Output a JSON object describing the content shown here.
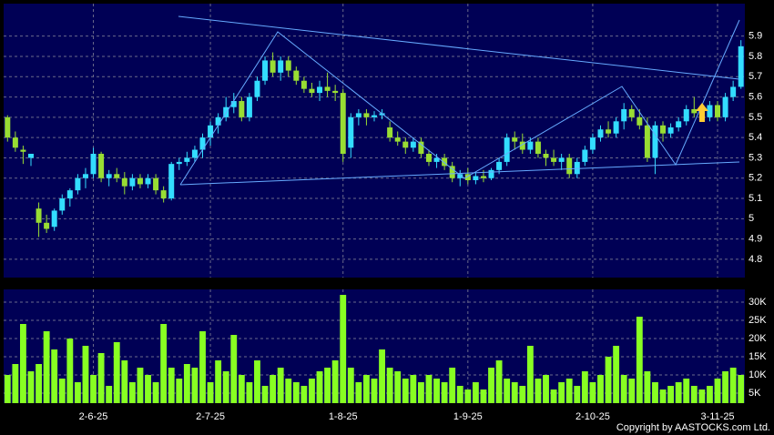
{
  "chart_data": [
    {
      "type": "candlestick",
      "categories": [
        null,
        null,
        null,
        null,
        null,
        null,
        null,
        null,
        null,
        null,
        null,
        "2-6-25",
        null,
        null,
        null,
        null,
        null,
        null,
        null,
        null,
        null,
        null,
        null,
        null,
        null,
        null,
        "2-7-25",
        null,
        null,
        null,
        null,
        null,
        null,
        null,
        null,
        null,
        null,
        null,
        null,
        null,
        null,
        null,
        null,
        "1-8-25",
        null,
        null,
        null,
        null,
        null,
        null,
        null,
        null,
        null,
        null,
        null,
        null,
        null,
        null,
        null,
        "1-9-25",
        null,
        null,
        null,
        null,
        null,
        null,
        null,
        null,
        null,
        null,
        null,
        null,
        null,
        null,
        null,
        "2-10-25",
        null,
        null,
        null,
        null,
        null,
        null,
        null,
        null,
        null,
        null,
        null,
        null,
        null,
        null,
        null,
        "3-11-25",
        null,
        null,
        null
      ],
      "open": [
        5.5,
        5.4,
        5.34,
        5.3,
        5.05,
        4.98,
        4.96,
        5.04,
        5.1,
        5.14,
        5.2,
        5.22,
        5.32,
        5.2,
        5.22,
        5.2,
        5.16,
        5.2,
        5.17,
        5.2,
        5.14,
        5.1,
        5.27,
        5.28,
        5.3,
        5.34,
        5.4,
        5.46,
        5.5,
        5.55,
        5.58,
        5.5,
        5.6,
        5.68,
        5.78,
        5.72,
        5.78,
        5.73,
        5.68,
        5.64,
        5.62,
        5.65,
        5.63,
        5.62,
        5.35,
        5.5,
        5.52,
        5.5,
        5.51,
        5.45,
        5.4,
        5.38,
        5.35,
        5.38,
        5.32,
        5.28,
        5.3,
        5.26,
        5.2,
        5.22,
        5.19,
        5.21,
        5.2,
        5.24,
        5.28,
        5.4,
        5.38,
        5.34,
        5.38,
        5.32,
        5.3,
        5.28,
        5.3,
        5.22,
        5.28,
        5.34,
        5.4,
        5.44,
        5.42,
        5.48,
        5.54,
        5.5,
        5.46,
        5.3,
        5.46,
        5.42,
        5.45,
        5.48,
        5.54,
        5.52,
        5.5,
        5.56,
        5.5,
        5.6,
        5.65
      ],
      "high": [
        5.51,
        5.43,
        5.36,
        5.32,
        5.08,
        5.02,
        5.05,
        5.12,
        5.15,
        5.22,
        5.25,
        5.35,
        5.33,
        5.24,
        5.25,
        5.23,
        5.22,
        5.22,
        5.22,
        5.22,
        5.16,
        5.28,
        5.3,
        5.33,
        5.36,
        5.42,
        5.48,
        5.52,
        5.6,
        5.62,
        5.6,
        5.62,
        5.7,
        5.8,
        5.82,
        5.8,
        5.8,
        5.75,
        5.7,
        5.67,
        5.68,
        5.72,
        5.66,
        5.64,
        5.52,
        5.54,
        5.54,
        5.53,
        5.54,
        5.48,
        5.43,
        5.4,
        5.4,
        5.4,
        5.34,
        5.32,
        5.32,
        5.28,
        5.24,
        5.25,
        5.23,
        5.24,
        5.25,
        5.3,
        5.42,
        5.43,
        5.42,
        5.4,
        5.4,
        5.34,
        5.34,
        5.32,
        5.32,
        5.3,
        5.36,
        5.42,
        5.46,
        5.48,
        5.5,
        5.57,
        5.56,
        5.54,
        5.5,
        5.48,
        5.48,
        5.47,
        5.5,
        5.56,
        5.6,
        5.56,
        5.58,
        5.58,
        5.62,
        5.68,
        5.88
      ],
      "low": [
        5.38,
        5.33,
        5.27,
        5.26,
        4.91,
        4.93,
        4.94,
        5.02,
        5.06,
        5.12,
        5.15,
        5.2,
        5.18,
        5.16,
        5.18,
        5.12,
        5.14,
        5.15,
        5.15,
        5.12,
        5.08,
        5.09,
        5.24,
        5.26,
        5.28,
        5.3,
        5.36,
        5.42,
        5.48,
        5.52,
        5.48,
        5.48,
        5.58,
        5.66,
        5.7,
        5.68,
        5.7,
        5.66,
        5.62,
        5.6,
        5.58,
        5.6,
        5.58,
        5.28,
        5.3,
        5.46,
        5.46,
        5.48,
        5.49,
        5.38,
        5.36,
        5.32,
        5.33,
        5.3,
        5.26,
        5.25,
        5.24,
        5.18,
        5.16,
        5.17,
        5.17,
        5.18,
        5.19,
        5.22,
        5.26,
        5.34,
        5.32,
        5.32,
        5.3,
        5.26,
        5.26,
        5.24,
        5.2,
        5.2,
        5.26,
        5.32,
        5.38,
        5.4,
        5.4,
        5.44,
        5.48,
        5.44,
        5.28,
        5.22,
        5.38,
        5.4,
        5.43,
        5.46,
        5.5,
        5.48,
        5.48,
        5.48,
        5.48,
        5.58,
        5.64
      ],
      "close": [
        5.4,
        5.35,
        5.33,
        5.32,
        4.98,
        4.95,
        5.04,
        5.1,
        5.14,
        5.2,
        5.22,
        5.32,
        5.2,
        5.22,
        5.2,
        5.16,
        5.2,
        5.17,
        5.2,
        5.14,
        5.1,
        5.27,
        5.28,
        5.3,
        5.34,
        5.4,
        5.46,
        5.5,
        5.55,
        5.58,
        5.5,
        5.6,
        5.68,
        5.78,
        5.72,
        5.78,
        5.73,
        5.68,
        5.64,
        5.62,
        5.65,
        5.63,
        5.62,
        5.32,
        5.5,
        5.52,
        5.5,
        5.51,
        5.52,
        5.4,
        5.38,
        5.35,
        5.38,
        5.32,
        5.28,
        5.3,
        5.26,
        5.2,
        5.22,
        5.19,
        5.21,
        5.2,
        5.24,
        5.28,
        5.4,
        5.38,
        5.34,
        5.38,
        5.32,
        5.3,
        5.28,
        5.3,
        5.22,
        5.28,
        5.34,
        5.4,
        5.44,
        5.42,
        5.48,
        5.54,
        5.5,
        5.46,
        5.3,
        5.46,
        5.42,
        5.45,
        5.48,
        5.54,
        5.52,
        5.5,
        5.56,
        5.5,
        5.6,
        5.65,
        5.85
      ],
      "up_color": "#33ddff",
      "down_color": "#99dd33",
      "ylim": [
        4.71,
        6.06
      ],
      "yticks": [
        4.8,
        4.9,
        5,
        5.1,
        5.2,
        5.3,
        5.4,
        5.5,
        5.6,
        5.7,
        5.8,
        5.9
      ],
      "grid": true
    },
    {
      "type": "bar",
      "values": [
        10000,
        13000,
        24000,
        11000,
        13000,
        22000,
        17000,
        9000,
        20000,
        8000,
        18000,
        10000,
        16000,
        7000,
        19000,
        14000,
        8000,
        12000,
        10000,
        8000,
        24000,
        12000,
        9000,
        13000,
        12000,
        22000,
        8000,
        14000,
        11000,
        21000,
        10000,
        8000,
        14000,
        7000,
        10000,
        12000,
        9000,
        8000,
        7000,
        9000,
        11000,
        12000,
        14000,
        32000,
        12000,
        8000,
        10000,
        9000,
        17000,
        12000,
        11000,
        9000,
        10000,
        8000,
        10000,
        9000,
        8000,
        12000,
        7000,
        6000,
        8000,
        6000,
        12000,
        14000,
        9000,
        8000,
        7000,
        18000,
        9000,
        10000,
        6000,
        8000,
        9000,
        7000,
        11000,
        8000,
        10000,
        15000,
        18000,
        10000,
        9000,
        26000,
        11000,
        8000,
        6000,
        7000,
        8000,
        9000,
        7000,
        6000,
        7000,
        9000,
        11000,
        12000,
        10000
      ],
      "color": "#88ff22",
      "ylim": [
        2250,
        33500
      ],
      "yticks": [
        {
          "value": 5000,
          "label": "5K"
        },
        {
          "value": 10000,
          "label": "10K"
        },
        {
          "value": 15000,
          "label": "15K"
        },
        {
          "value": 20000,
          "label": "20K"
        },
        {
          "value": 25000,
          "label": "25K"
        },
        {
          "value": 30000,
          "label": "30K"
        }
      ],
      "grid": true
    }
  ],
  "footer": "Copyright by AASTOCKS.com Ltd."
}
